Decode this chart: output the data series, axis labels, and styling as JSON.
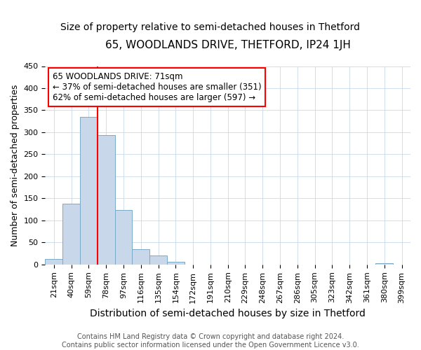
{
  "title": "65, WOODLANDS DRIVE, THETFORD, IP24 1JH",
  "subtitle": "Size of property relative to semi-detached houses in Thetford",
  "xlabel": "Distribution of semi-detached houses by size in Thetford",
  "ylabel": "Number of semi-detached properties",
  "categories": [
    "21sqm",
    "40sqm",
    "59sqm",
    "78sqm",
    "97sqm",
    "116sqm",
    "135sqm",
    "154sqm",
    "172sqm",
    "191sqm",
    "210sqm",
    "229sqm",
    "248sqm",
    "267sqm",
    "286sqm",
    "305sqm",
    "323sqm",
    "342sqm",
    "361sqm",
    "380sqm",
    "399sqm"
  ],
  "values": [
    13,
    138,
    335,
    293,
    124,
    35,
    20,
    6,
    0,
    0,
    0,
    0,
    0,
    0,
    0,
    0,
    0,
    0,
    0,
    3,
    0
  ],
  "bar_color": "#c8d8ea",
  "bar_edge_color": "#7aaac8",
  "vline_color": "red",
  "vline_pos": 2.5,
  "annotation_text": "65 WOODLANDS DRIVE: 71sqm\n← 37% of semi-detached houses are smaller (351)\n62% of semi-detached houses are larger (597) →",
  "annotation_box_color": "white",
  "annotation_box_edge_color": "red",
  "ylim": [
    0,
    450
  ],
  "yticks": [
    0,
    50,
    100,
    150,
    200,
    250,
    300,
    350,
    400,
    450
  ],
  "footer": "Contains HM Land Registry data © Crown copyright and database right 2024.\nContains public sector information licensed under the Open Government Licence v3.0.",
  "title_fontsize": 11,
  "subtitle_fontsize": 10,
  "xlabel_fontsize": 10,
  "ylabel_fontsize": 9,
  "tick_fontsize": 8,
  "annotation_fontsize": 8.5,
  "footer_fontsize": 7
}
